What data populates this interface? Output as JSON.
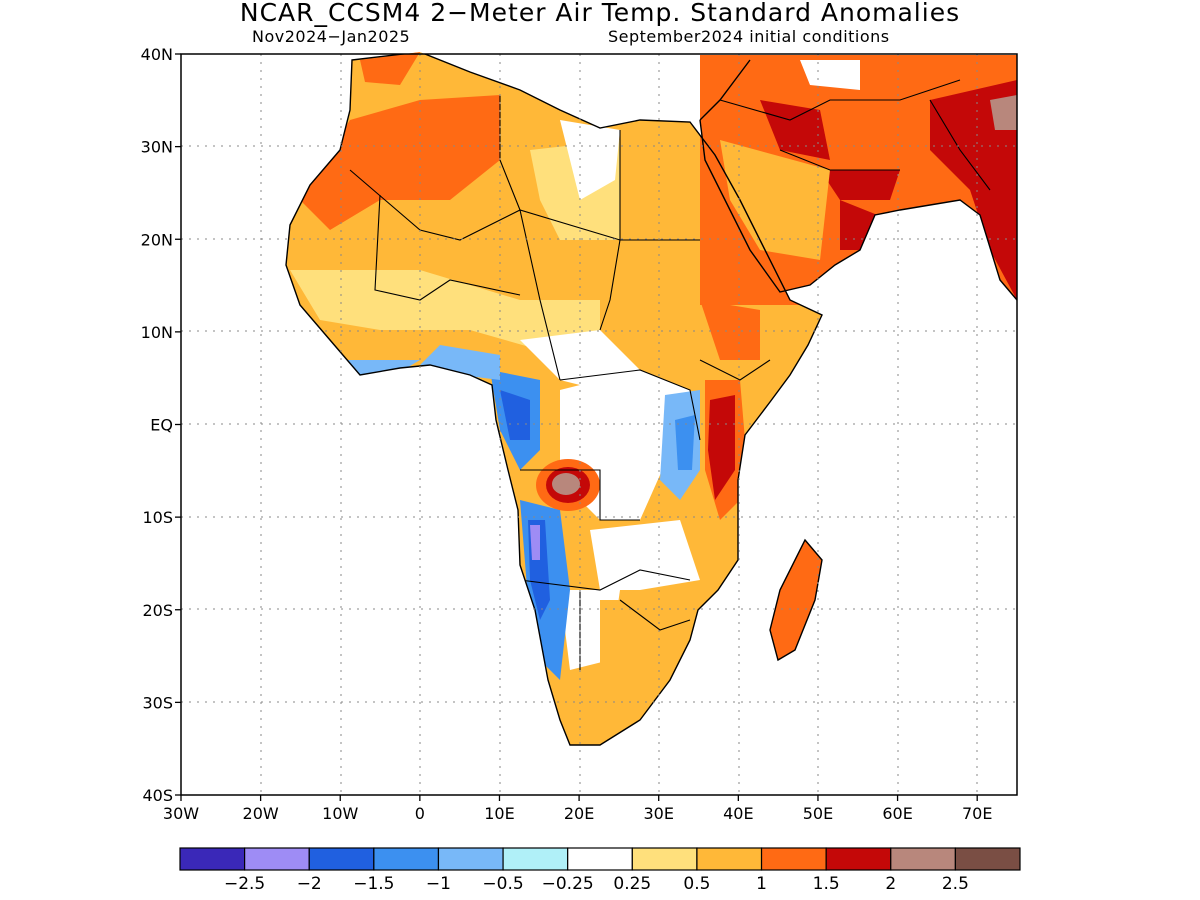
{
  "title": "NCAR_CCSM4 2−Meter Air Temp. Standard Anomalies",
  "subtitle_left": "Nov2024−Jan2025",
  "subtitle_right": "September2024 initial conditions",
  "map": {
    "lon_range": [
      -30,
      75
    ],
    "lat_range": [
      -40,
      40
    ],
    "grid": true,
    "x_ticks": [
      "30W",
      "20W",
      "10W",
      "0",
      "10E",
      "20E",
      "30E",
      "40E",
      "50E",
      "60E",
      "70E"
    ],
    "y_ticks": [
      "40N",
      "30N",
      "20N",
      "10N",
      "EQ",
      "10S",
      "20S",
      "30S",
      "40S"
    ]
  },
  "colorbar": {
    "colors": [
      "#3a28b8",
      "#9e8cf5",
      "#2060e0",
      "#3c90f0",
      "#78b8f8",
      "#b0f0f8",
      "#ffffff",
      "#ffe07c",
      "#ffb838",
      "#ff6a14",
      "#c40808",
      "#b8877c",
      "#7a4e44"
    ],
    "labels": [
      "−2.5",
      "−2",
      "−1.5",
      "−1",
      "−0.5",
      "−0.25",
      "0.25",
      "0.5",
      "1",
      "1.5",
      "2",
      "2.5"
    ]
  }
}
